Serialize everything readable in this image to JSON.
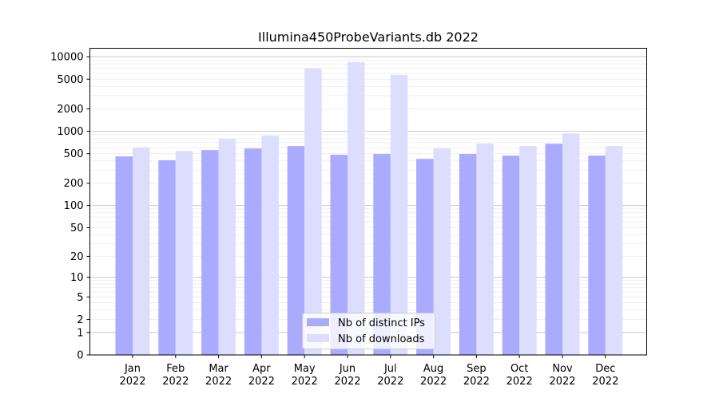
{
  "chart_data": {
    "type": "bar",
    "title": "Illumina450ProbeVariants.db 2022",
    "xlabel": "",
    "ylabel": "",
    "yscale": "log(y+1)",
    "ylim": [
      0,
      13000
    ],
    "yticks": [
      0,
      1,
      2,
      5,
      10,
      20,
      50,
      100,
      200,
      500,
      1000,
      2000,
      5000,
      10000
    ],
    "grid": true,
    "legend_position": "lower-center",
    "categories": [
      "Jan\n2022",
      "Feb\n2022",
      "Mar\n2022",
      "Apr\n2022",
      "May\n2022",
      "Jun\n2022",
      "Jul\n2022",
      "Aug\n2022",
      "Sep\n2022",
      "Oct\n2022",
      "Nov\n2022",
      "Dec\n2022"
    ],
    "series": [
      {
        "name": "Nb of distinct IPs",
        "color": "#aaaaff",
        "values": [
          460,
          408,
          559,
          587,
          632,
          483,
          495,
          426,
          495,
          471,
          680,
          471
        ]
      },
      {
        "name": "Nb of downloads",
        "color": "#ddddff",
        "values": [
          603,
          545,
          789,
          871,
          6970,
          8490,
          5730,
          587,
          680,
          632,
          935,
          632
        ]
      }
    ]
  }
}
